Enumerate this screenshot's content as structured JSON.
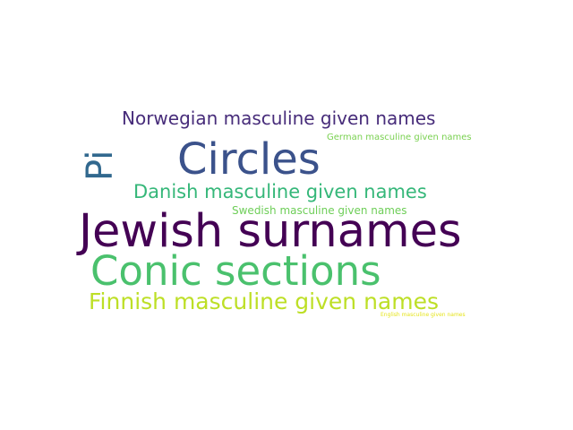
{
  "words": [
    {
      "text": "Norwegian masculine given names",
      "color": "#472c7a"
    },
    {
      "text": "German masculine given names",
      "color": "#7ad151"
    },
    {
      "text": "Pi",
      "color": "#31688e"
    },
    {
      "text": "Circles",
      "color": "#3b528b"
    },
    {
      "text": "Danish masculine given names",
      "color": "#35b779"
    },
    {
      "text": "Swedish masculine given names",
      "color": "#6ece58"
    },
    {
      "text": "Jewish surnames",
      "color": "#440154"
    },
    {
      "text": "Conic sections",
      "color": "#4ac16d"
    },
    {
      "text": "Finnish masculine given names",
      "color": "#bddf26"
    },
    {
      "text": "English masculine given names",
      "color": "#e5e419"
    }
  ]
}
